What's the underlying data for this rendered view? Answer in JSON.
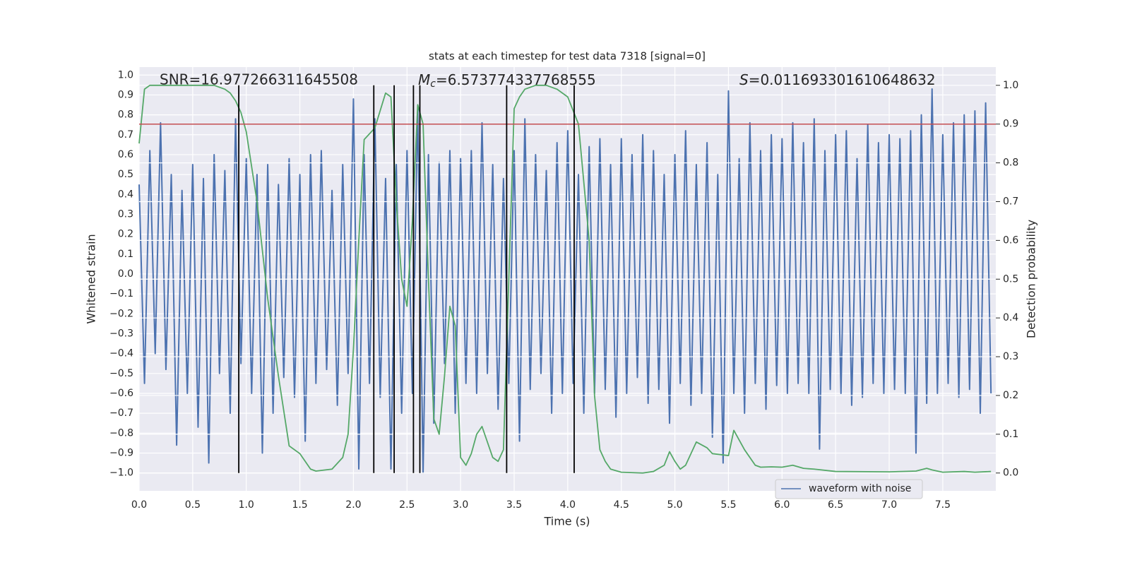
{
  "chart_data": {
    "type": "line",
    "title": "stats at each timestep for test data 7318 [signal=0]",
    "xlabel": "Time (s)",
    "ylabel": "Whitened strain",
    "y2label": "Detection probability",
    "annotations": [
      {
        "text": "SNR=16.977266311645508"
      },
      {
        "symbol": "M",
        "subscript": "c",
        "text": "=6.573774337768555"
      },
      {
        "symbol": "S",
        "text": "=0.011693301610648632"
      }
    ],
    "xlim": [
      0,
      7.995
    ],
    "ylim": [
      -1.09,
      1.04
    ],
    "y2lim": [
      -0.046,
      1.047
    ],
    "xticks": [
      {
        "value": 0,
        "label": "0.0"
      },
      0.5,
      {
        "value": 1,
        "label": "1.0"
      },
      1.5,
      {
        "value": 2,
        "label": "2.0"
      },
      2.5,
      {
        "value": 3,
        "label": "3.0"
      },
      3.5,
      {
        "value": 4,
        "label": "4.0"
      },
      4.5,
      {
        "value": 5,
        "label": "5.0"
      },
      5.5,
      {
        "value": 6,
        "label": "6.0"
      },
      6.5,
      {
        "value": 7,
        "label": "7.0"
      },
      7.5
    ],
    "yticks": [
      {
        "value": -1,
        "label": "−1.0"
      },
      {
        "value": -0.9,
        "label": "−0.9"
      },
      {
        "value": -0.8,
        "label": "−0.8"
      },
      {
        "value": -0.7,
        "label": "−0.7"
      },
      {
        "value": -0.6,
        "label": "−0.6"
      },
      {
        "value": -0.5,
        "label": "−0.5"
      },
      {
        "value": -0.4,
        "label": "−0.4"
      },
      {
        "value": -0.3,
        "label": "−0.3"
      },
      {
        "value": -0.2,
        "label": "−0.2"
      },
      {
        "value": -0.1,
        "label": "−0.1"
      },
      {
        "value": 0,
        "label": "0.0"
      },
      0.1,
      0.2,
      0.3,
      0.4,
      0.5,
      0.6,
      0.7,
      0.8,
      0.9,
      {
        "value": 1,
        "label": "1.0"
      }
    ],
    "y2ticks": [
      {
        "value": 0,
        "label": "0.0"
      },
      0.1,
      0.2,
      0.3,
      0.4,
      0.5,
      0.6,
      0.7,
      0.8,
      0.9,
      {
        "value": 1,
        "label": "1.0"
      }
    ],
    "grid": true,
    "legend": "lower right",
    "threshold": {
      "value": 0.9,
      "axis": "y2",
      "color": "#c44e52"
    },
    "vlines": {
      "color": "#000000",
      "x": [
        0.93,
        2.19,
        2.38,
        2.56,
        2.62,
        3.43,
        4.06
      ]
    },
    "series": [
      {
        "name": "waveform with noise",
        "color": "#4c72b0",
        "x": [
          0,
          0.05,
          0.1,
          0.15,
          0.2,
          0.25,
          0.3,
          0.35,
          0.4,
          0.45,
          0.5,
          0.55,
          0.6,
          0.65,
          0.7,
          0.75,
          0.8,
          0.85,
          0.9,
          0.95,
          1,
          1.05,
          1.1,
          1.15,
          1.2,
          1.25,
          1.3,
          1.35,
          1.4,
          1.45,
          1.5,
          1.55,
          1.6,
          1.65,
          1.7,
          1.75,
          1.8,
          1.85,
          1.9,
          1.95,
          2,
          2.05,
          2.1,
          2.15,
          2.2,
          2.25,
          2.3,
          2.35,
          2.4,
          2.45,
          2.5,
          2.55,
          2.6,
          2.65,
          2.7,
          2.75,
          2.8,
          2.85,
          2.9,
          2.95,
          3,
          3.05,
          3.1,
          3.15,
          3.2,
          3.25,
          3.3,
          3.35,
          3.4,
          3.45,
          3.5,
          3.55,
          3.6,
          3.65,
          3.7,
          3.75,
          3.8,
          3.85,
          3.9,
          3.95,
          4,
          4.05,
          4.1,
          4.15,
          4.2,
          4.25,
          4.3,
          4.35,
          4.4,
          4.45,
          4.5,
          4.55,
          4.6,
          4.65,
          4.7,
          4.75,
          4.8,
          4.85,
          4.9,
          4.95,
          5,
          5.05,
          5.1,
          5.15,
          5.2,
          5.25,
          5.3,
          5.35,
          5.4,
          5.45,
          5.5,
          5.55,
          5.6,
          5.65,
          5.7,
          5.75,
          5.8,
          5.85,
          5.9,
          5.95,
          6,
          6.05,
          6.1,
          6.15,
          6.2,
          6.25,
          6.3,
          6.35,
          6.4,
          6.45,
          6.5,
          6.55,
          6.6,
          6.65,
          6.7,
          6.75,
          6.8,
          6.85,
          6.9,
          6.95,
          7,
          7.05,
          7.1,
          7.15,
          7.2,
          7.25,
          7.3,
          7.35,
          7.4,
          7.45,
          7.5,
          7.55,
          7.6,
          7.65,
          7.7,
          7.75,
          7.8,
          7.85,
          7.9,
          7.95
        ],
        "values": [
          0.45,
          -0.55,
          0.62,
          -0.4,
          0.76,
          -0.48,
          0.5,
          -0.86,
          0.42,
          -0.6,
          0.55,
          -0.77,
          0.48,
          -0.95,
          0.6,
          -0.5,
          0.52,
          -0.7,
          0.78,
          -0.45,
          0.58,
          -0.6,
          0.5,
          -0.9,
          0.55,
          -0.7,
          0.45,
          -0.52,
          0.58,
          -0.62,
          0.5,
          -0.84,
          0.6,
          -0.55,
          0.62,
          -0.48,
          0.42,
          -0.66,
          0.55,
          -0.5,
          0.88,
          -0.98,
          0.6,
          -0.55,
          0.78,
          -0.62,
          0.48,
          -0.98,
          0.55,
          -0.7,
          0.62,
          -0.6,
          0.83,
          -1.0,
          0.6,
          -0.75,
          0.56,
          -0.45,
          0.62,
          -0.7,
          0.58,
          -0.55,
          0.62,
          -0.6,
          0.76,
          -0.5,
          0.55,
          -0.68,
          0.48,
          -0.55,
          0.62,
          -0.84,
          0.78,
          -0.58,
          0.6,
          -0.5,
          0.52,
          -0.7,
          0.66,
          -0.6,
          0.72,
          -0.55,
          0.5,
          -0.7,
          0.64,
          -0.6,
          0.68,
          -0.58,
          0.55,
          -0.72,
          0.68,
          -0.6,
          0.6,
          -0.52,
          0.7,
          -0.65,
          0.62,
          -0.58,
          0.5,
          -0.75,
          0.6,
          -0.55,
          0.72,
          -0.66,
          0.55,
          -0.6,
          0.66,
          -0.82,
          0.5,
          -0.95,
          0.92,
          -0.6,
          0.58,
          -0.7,
          0.76,
          -0.55,
          0.62,
          -0.68,
          0.7,
          -0.56,
          0.68,
          -0.6,
          0.76,
          -0.55,
          0.66,
          -0.6,
          0.78,
          -0.88,
          0.62,
          -0.58,
          0.7,
          -0.6,
          0.72,
          -0.66,
          0.58,
          -0.62,
          0.75,
          -0.55,
          0.66,
          -0.6,
          0.7,
          -0.58,
          0.68,
          -0.6,
          0.72,
          -0.9,
          0.8,
          -0.65,
          0.93,
          -0.6,
          0.7,
          -0.55,
          0.76,
          -0.62,
          0.8,
          -0.58,
          0.82,
          -0.7,
          0.86,
          -0.6
        ]
      },
      {
        "color": "#55a868",
        "axis": "y2",
        "x": [
          0,
          0.05,
          0.1,
          0.2,
          0.3,
          0.5,
          0.7,
          0.8,
          0.85,
          0.9,
          0.95,
          1.0,
          1.1,
          1.2,
          1.3,
          1.4,
          1.5,
          1.6,
          1.65,
          1.8,
          1.9,
          1.95,
          2.0,
          2.05,
          2.1,
          2.2,
          2.3,
          2.35,
          2.4,
          2.45,
          2.5,
          2.55,
          2.6,
          2.65,
          2.7,
          2.75,
          2.8,
          2.85,
          2.9,
          2.95,
          3.0,
          3.05,
          3.1,
          3.15,
          3.2,
          3.3,
          3.35,
          3.4,
          3.45,
          3.5,
          3.55,
          3.6,
          3.7,
          3.8,
          3.9,
          4.0,
          4.1,
          4.2,
          4.25,
          4.3,
          4.35,
          4.4,
          4.5,
          4.7,
          4.8,
          4.9,
          4.95,
          5.0,
          5.05,
          5.1,
          5.15,
          5.2,
          5.3,
          5.35,
          5.5,
          5.55,
          5.6,
          5.65,
          5.75,
          5.8,
          5.9,
          6.0,
          6.1,
          6.2,
          6.3,
          6.5,
          7.0,
          7.25,
          7.35,
          7.4,
          7.5,
          7.7,
          7.8,
          7.95
        ],
        "values": [
          0.85,
          0.99,
          1.0,
          1.0,
          1.0,
          1.0,
          1.0,
          0.99,
          0.98,
          0.96,
          0.93,
          0.88,
          0.7,
          0.45,
          0.25,
          0.07,
          0.05,
          0.01,
          0.005,
          0.01,
          0.04,
          0.1,
          0.32,
          0.6,
          0.86,
          0.89,
          0.98,
          0.97,
          0.7,
          0.5,
          0.43,
          0.65,
          0.95,
          0.9,
          0.5,
          0.14,
          0.1,
          0.25,
          0.43,
          0.38,
          0.04,
          0.02,
          0.05,
          0.1,
          0.12,
          0.04,
          0.03,
          0.06,
          0.5,
          0.94,
          0.97,
          0.99,
          1.0,
          1.0,
          0.99,
          0.97,
          0.9,
          0.6,
          0.2,
          0.06,
          0.03,
          0.01,
          0.002,
          0.0,
          0.004,
          0.02,
          0.055,
          0.03,
          0.01,
          0.02,
          0.05,
          0.08,
          0.065,
          0.05,
          0.045,
          0.11,
          0.085,
          0.06,
          0.02,
          0.015,
          0.016,
          0.015,
          0.02,
          0.012,
          0.01,
          0.004,
          0.003,
          0.005,
          0.012,
          0.008,
          0.002,
          0.004,
          0.002,
          0.004
        ]
      }
    ]
  }
}
